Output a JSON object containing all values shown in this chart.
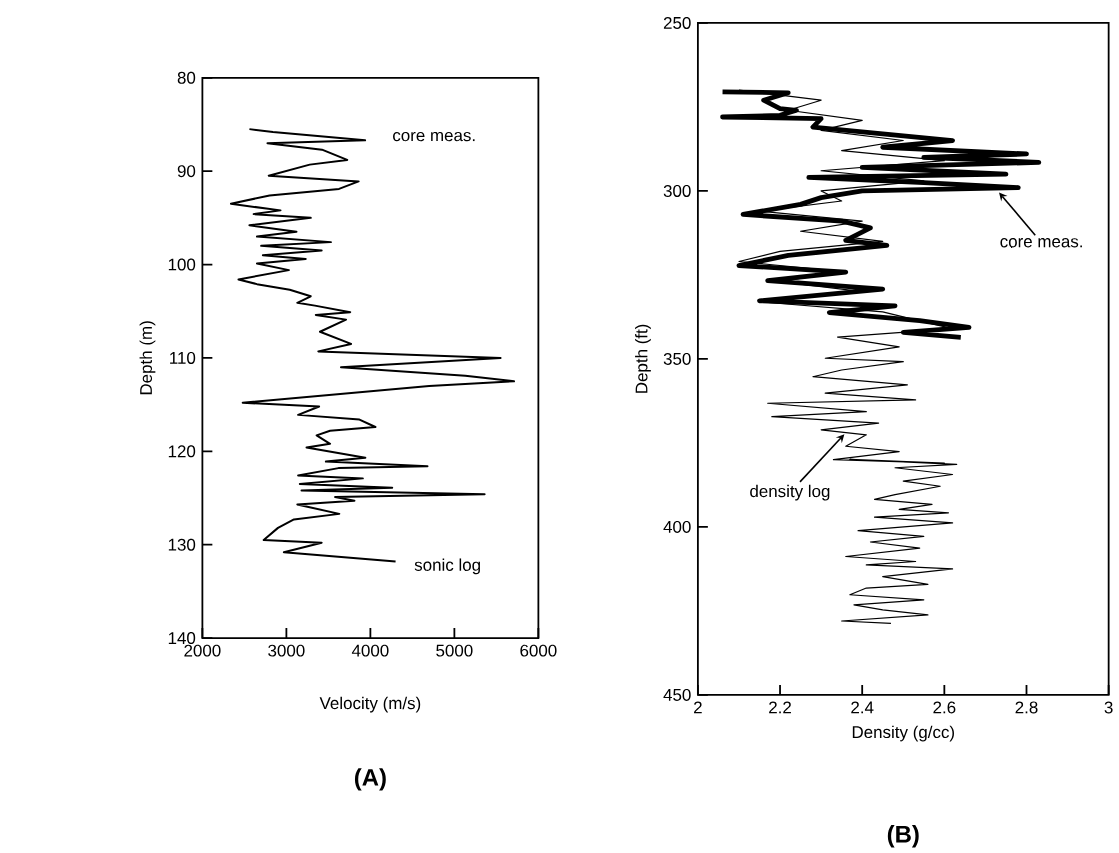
{
  "chart_data": [
    {
      "type": "line",
      "xlabel": "Velocity   (m/s)",
      "ylabel": "Depth (m)",
      "xlim": [
        2000,
        6000
      ],
      "xticks": [
        2000,
        3000,
        4000,
        5000,
        6000
      ],
      "ylim": [
        140,
        80
      ],
      "yticks": [
        80,
        90,
        100,
        110,
        120,
        130,
        140
      ],
      "series": [
        {
          "color": "#000000",
          "x": [
            2560,
            2840,
            3937,
            2775,
            3424,
            3724,
            3278,
            2790,
            3860,
            3627,
            2800,
            2340,
            2930,
            2610,
            3290,
            2560,
            3120,
            2650,
            3530,
            2700,
            3420,
            2720,
            3230,
            2650,
            3030,
            2430,
            2650,
            3040,
            3290,
            3130,
            3340,
            3760,
            3350,
            3710,
            3400,
            3770,
            3380,
            5550,
            3650,
            5130,
            5710,
            4700,
            2480,
            3390,
            3140,
            3870,
            4060,
            3520,
            3360,
            3520,
            3240,
            3940,
            3470,
            4680,
            3620,
            3140,
            3910,
            3160,
            4260,
            3180,
            5360,
            3580,
            3810,
            3130,
            3630,
            3090,
            2900,
            2730,
            3420,
            2970,
            4300
          ],
          "values": [
            85.5,
            85.8,
            86.7,
            87.0,
            87.7,
            88.8,
            89.3,
            90.5,
            91.1,
            91.9,
            92.6,
            93.5,
            94.2,
            94.6,
            95.0,
            95.8,
            96.5,
            97.0,
            97.6,
            98.0,
            98.5,
            99.0,
            99.4,
            99.9,
            100.6,
            101.6,
            102.1,
            102.7,
            103.4,
            104.1,
            104.4,
            105.1,
            105.4,
            105.9,
            107.2,
            108.5,
            109.3,
            110.0,
            111.0,
            111.9,
            112.5,
            113.0,
            114.8,
            115.2,
            116.1,
            116.6,
            117.4,
            117.8,
            118.3,
            119.2,
            119.6,
            120.7,
            121.1,
            121.6,
            121.8,
            122.6,
            122.9,
            123.5,
            123.9,
            124.2,
            124.6,
            124.9,
            125.3,
            125.7,
            126.7,
            127.3,
            128.2,
            129.5,
            129.8,
            130.8,
            131.8
          ]
        }
      ],
      "annotations": [
        "core meas.",
        "sonic log",
        "(A)"
      ]
    },
    {
      "type": "line",
      "xlabel": "Density (g/cc)",
      "ylabel": "Depth (ft)",
      "xlim": [
        2,
        3
      ],
      "xticks": [
        2,
        2.2,
        2.4,
        2.6,
        2.8,
        3
      ],
      "ylim": [
        450,
        250
      ],
      "yticks": [
        250,
        300,
        350,
        400,
        450
      ],
      "series": [
        {
          "color": "#000000",
          "x": [
            2.06,
            2.22,
            2.16,
            2.2,
            2.24,
            2.2,
            2.06,
            2.3,
            2.28,
            2.45,
            2.62,
            2.45,
            2.8,
            2.55,
            2.83,
            2.4,
            2.75,
            2.27,
            2.55,
            2.78,
            2.4,
            2.3,
            2.25,
            2.11,
            2.35,
            2.42,
            2.36,
            2.46,
            2.22,
            2.1,
            2.36,
            2.17,
            2.45,
            2.15,
            2.48,
            2.32,
            2.54,
            2.66,
            2.5,
            2.64
          ],
          "values": [
            270.5,
            270.8,
            273,
            275.5,
            276,
            277.5,
            278,
            278.5,
            281,
            283,
            285,
            287,
            289,
            290,
            291.5,
            293,
            295,
            296,
            297.5,
            299,
            300,
            302,
            304,
            307,
            309,
            311,
            314.7,
            316.2,
            319.2,
            322.2,
            324.2,
            326.7,
            329.2,
            332.7,
            334.2,
            336.2,
            338.6,
            340.6,
            342.1,
            343.6
          ]
        },
        {
          "color": "#000000",
          "x": [
            2.1,
            2.3,
            2.22,
            2.4,
            2.3,
            2.5,
            2.35,
            2.6,
            2.3,
            2.55,
            2.3,
            2.35,
            2.15,
            2.4,
            2.25,
            2.45,
            2.2,
            2.1,
            2.35,
            2.2,
            2.4,
            2.15,
            2.45,
            2.55,
            2.62,
            2.34,
            2.49,
            2.31,
            2.5,
            2.35,
            2.28,
            2.51,
            2.31,
            2.53,
            2.17,
            2.41,
            2.18,
            2.44,
            2.3,
            2.41,
            2.36,
            2.49,
            2.33,
            2.6,
            2.37,
            2.63,
            2.48,
            2.62,
            2.5,
            2.59,
            2.48,
            2.43,
            2.57,
            2.49,
            2.61,
            2.43,
            2.62,
            2.39,
            2.55,
            2.42,
            2.54,
            2.36,
            2.53,
            2.41,
            2.62,
            2.45,
            2.56,
            2.41,
            2.37,
            2.55,
            2.38,
            2.45,
            2.56,
            2.35,
            2.47
          ],
          "values": [
            270,
            273,
            276,
            279,
            282,
            285,
            288,
            291,
            294,
            297,
            300,
            303,
            306,
            309,
            312,
            315,
            318,
            321,
            324,
            327,
            330,
            333,
            336,
            339,
            341,
            343.5,
            346.4,
            349.8,
            350.8,
            353.3,
            355.3,
            357.7,
            360.2,
            362.2,
            363.2,
            365.7,
            367.2,
            369.1,
            371.1,
            372.6,
            376,
            377.6,
            380,
            381,
            379.9,
            381.4,
            382.4,
            384.4,
            386.4,
            387.9,
            390.4,
            391.8,
            393.3,
            394.8,
            395.8,
            397.1,
            398.8,
            401.1,
            402.8,
            404.5,
            406.3,
            408.8,
            410.3,
            411.3,
            412.5,
            414.8,
            417.1,
            418.2,
            420.2,
            421.7,
            423.2,
            424.7,
            426.2,
            428,
            428.7
          ]
        }
      ],
      "annotations": [
        {
          "text": "core meas.",
          "x": 2.73,
          "y": 300
        },
        {
          "text": "density log",
          "x": 2.36,
          "y": 372
        },
        "(B)"
      ]
    }
  ]
}
